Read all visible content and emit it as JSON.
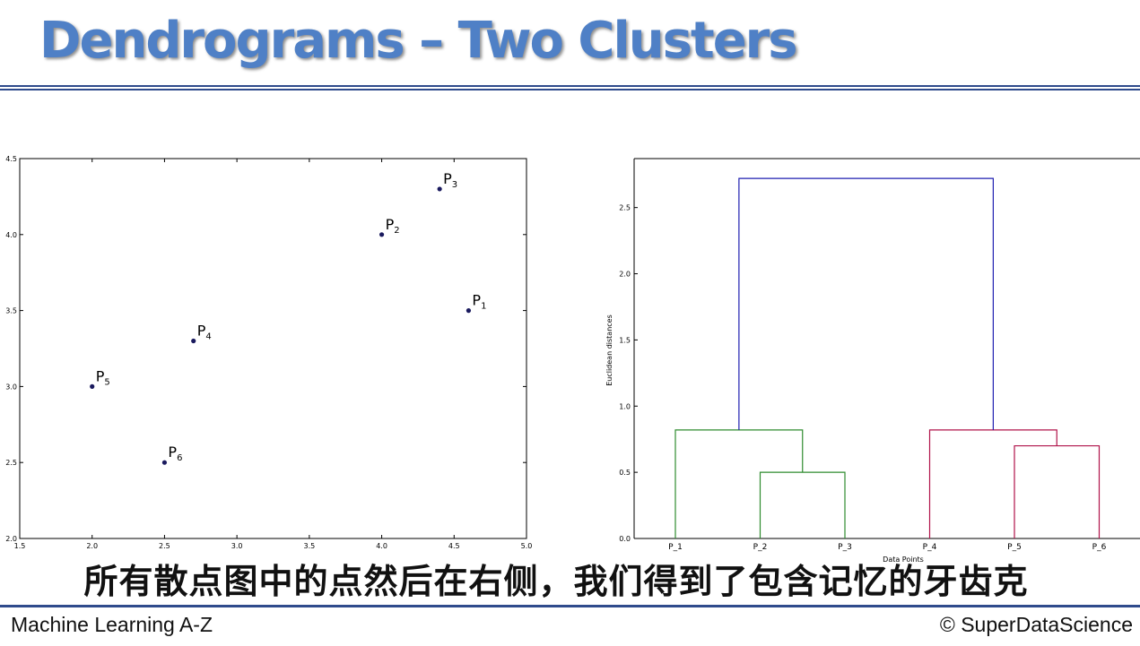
{
  "slide": {
    "title": "Dendrograms – Two Clusters",
    "subtitle": "所有散点图中的点然后在右侧，我们得到了包含记忆的牙齿克",
    "footer_left": "Machine Learning A-Z",
    "footer_right": "© SuperDataScience",
    "colors": {
      "title": "#4f80c6",
      "rule": "#2f4b8c"
    }
  },
  "chart_data": [
    {
      "type": "scatter",
      "xlim": [
        1.5,
        5.0
      ],
      "ylim": [
        2.0,
        4.5
      ],
      "x_ticks": [
        "1.5",
        "2.0",
        "2.5",
        "3.0",
        "3.5",
        "4.0",
        "4.5",
        "5.0"
      ],
      "y_ticks": [
        "2.0",
        "2.5",
        "3.0",
        "3.5",
        "4.0",
        "4.5"
      ],
      "grid": false,
      "point_color": "#1a1a5e",
      "points": [
        {
          "label": "P",
          "sub": "1",
          "x": 4.6,
          "y": 3.5
        },
        {
          "label": "P",
          "sub": "2",
          "x": 4.0,
          "y": 4.0
        },
        {
          "label": "P",
          "sub": "3",
          "x": 4.4,
          "y": 4.3
        },
        {
          "label": "P",
          "sub": "4",
          "x": 2.7,
          "y": 3.3
        },
        {
          "label": "P",
          "sub": "5",
          "x": 2.0,
          "y": 3.0
        },
        {
          "label": "P",
          "sub": "6",
          "x": 2.5,
          "y": 2.5
        }
      ]
    },
    {
      "type": "dendrogram",
      "xlabel": "Data Points",
      "ylabel": "Euclidean distances",
      "ylim": [
        0,
        2.87
      ],
      "y_ticks": [
        "0.0",
        "0.5",
        "1.0",
        "1.5",
        "2.0",
        "2.5"
      ],
      "leaves": [
        "P_1",
        "P_2",
        "P_3",
        "P_4",
        "P_5",
        "P_6"
      ],
      "links": [
        {
          "left_leaf": 1,
          "right_leaf": 2,
          "height": 0.5,
          "color": "#2e8b2e"
        },
        {
          "left_leaf": 0,
          "right_node": 0,
          "height": 0.82,
          "color": "#2e8b2e"
        },
        {
          "left_leaf": 4,
          "right_leaf": 5,
          "height": 0.7,
          "color": "#b0134a"
        },
        {
          "left_leaf": 3,
          "right_node": 2,
          "height": 0.82,
          "color": "#b0134a"
        },
        {
          "left_node": 1,
          "right_node": 3,
          "height": 2.72,
          "color": "#1f1fb0"
        }
      ]
    }
  ]
}
